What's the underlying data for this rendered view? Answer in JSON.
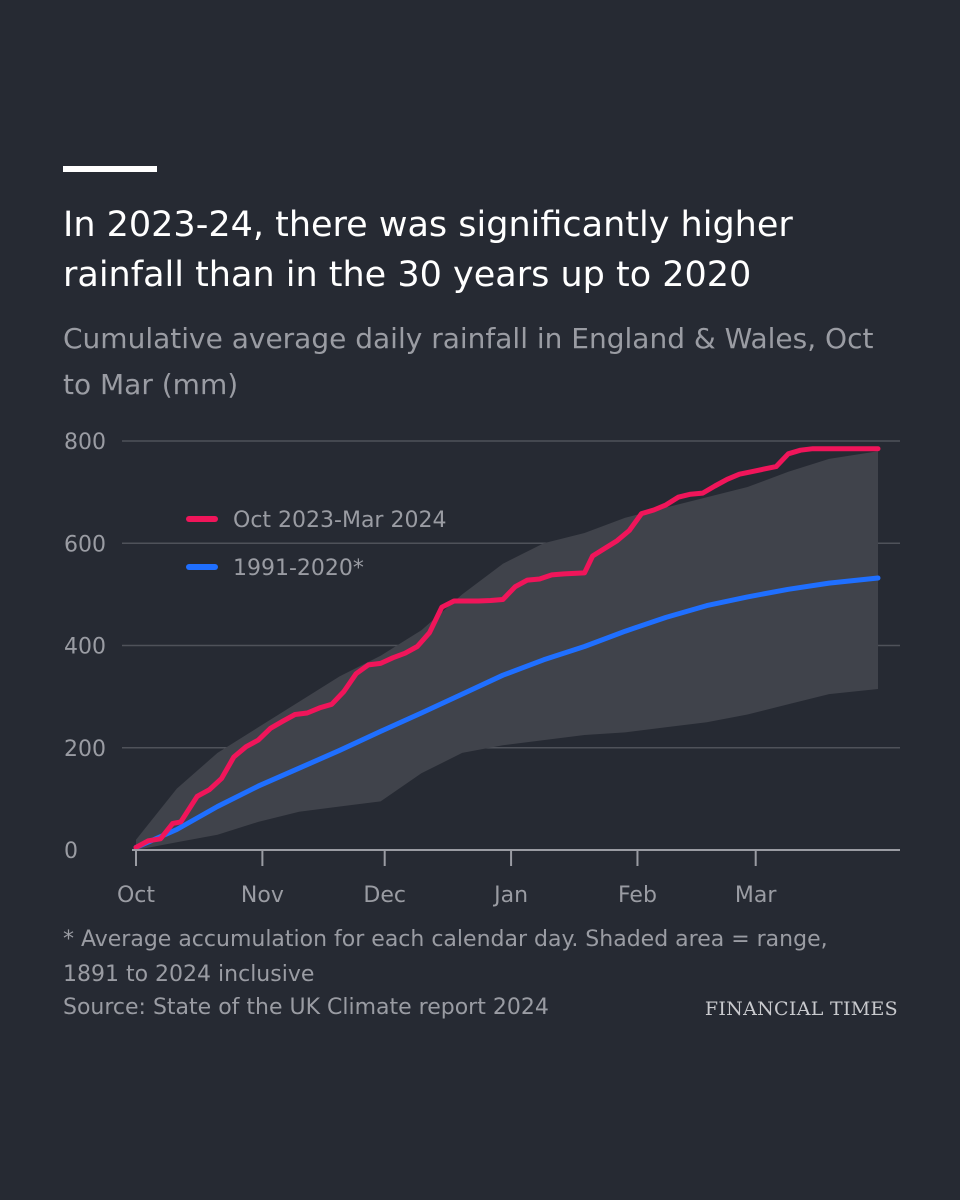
{
  "title": "In 2023-24, there was significantly higher rainfall than in the 30 years up to 2020",
  "subtitle": "Cumulative average daily rainfall in England & Wales, Oct to Mar (mm)",
  "footnote": "* Average accumulation for each calendar day. Shaded area = range, 1891 to 2024 inclusive",
  "source": "Source: State of the UK Climate report 2024",
  "brand": "FINANCIAL TIMES",
  "colors": {
    "background": "#262a33",
    "series_2023": "#f0155a",
    "series_avg": "#1f6fff",
    "range": "#40434b",
    "grid": "#4f525a",
    "axis": "#9a9ca3"
  },
  "chart_data": {
    "type": "line",
    "xlabel": "",
    "ylabel": "",
    "xlim": [
      0,
      182
    ],
    "ylim": [
      0,
      800
    ],
    "y_ticks": [
      0,
      200,
      400,
      600,
      800
    ],
    "x_ticks": [
      {
        "label": "Oct",
        "day": 0
      },
      {
        "label": "Nov",
        "day": 31
      },
      {
        "label": "Dec",
        "day": 61
      },
      {
        "label": "Jan",
        "day": 92
      },
      {
        "label": "Feb",
        "day": 123
      },
      {
        "label": "Mar",
        "day": 152
      }
    ],
    "grid": true,
    "legend": "top-left",
    "series": [
      {
        "name": "Oct 2023-Mar 2024",
        "color": "#f0155a",
        "x": [
          0,
          3,
          6,
          9,
          11,
          15,
          18,
          21,
          24,
          27,
          30,
          33,
          36,
          39,
          42,
          45,
          48,
          51,
          54,
          57,
          60,
          63,
          66,
          69,
          72,
          75,
          78,
          81,
          84,
          87,
          90,
          93,
          96,
          99,
          102,
          105,
          110,
          112,
          115,
          118,
          121,
          124,
          127,
          130,
          133,
          136,
          139,
          142,
          145,
          148,
          151,
          154,
          157,
          160,
          163,
          166,
          169,
          172,
          175,
          178,
          182
        ],
        "values": [
          5,
          18,
          22,
          52,
          55,
          105,
          118,
          140,
          182,
          202,
          215,
          238,
          252,
          265,
          268,
          278,
          285,
          310,
          345,
          362,
          365,
          376,
          385,
          398,
          425,
          475,
          487,
          487,
          487,
          488,
          490,
          515,
          528,
          530,
          538,
          540,
          542,
          575,
          590,
          605,
          625,
          658,
          665,
          675,
          690,
          696,
          698,
          712,
          725,
          735,
          740,
          745,
          750,
          775,
          782,
          785,
          785,
          785,
          785,
          785,
          785
        ]
      },
      {
        "name": "1991-2020*",
        "color": "#1f6fff",
        "x": [
          0,
          10,
          20,
          30,
          40,
          50,
          60,
          70,
          80,
          90,
          100,
          110,
          120,
          130,
          140,
          150,
          160,
          170,
          182
        ],
        "values": [
          5,
          40,
          85,
          125,
          160,
          195,
          232,
          268,
          305,
          342,
          372,
          398,
          428,
          455,
          478,
          495,
          510,
          522,
          532
        ]
      }
    ],
    "range_band": {
      "label": "range, 1891 to 2024 inclusive",
      "x": [
        0,
        10,
        20,
        30,
        40,
        50,
        60,
        70,
        80,
        90,
        100,
        110,
        120,
        130,
        140,
        150,
        160,
        170,
        182
      ],
      "upper": [
        20,
        120,
        190,
        240,
        290,
        340,
        380,
        430,
        500,
        560,
        600,
        620,
        650,
        670,
        690,
        710,
        740,
        765,
        780
      ],
      "lower": [
        0,
        15,
        30,
        55,
        75,
        85,
        95,
        150,
        190,
        205,
        215,
        225,
        230,
        240,
        250,
        265,
        285,
        305,
        315
      ]
    }
  }
}
